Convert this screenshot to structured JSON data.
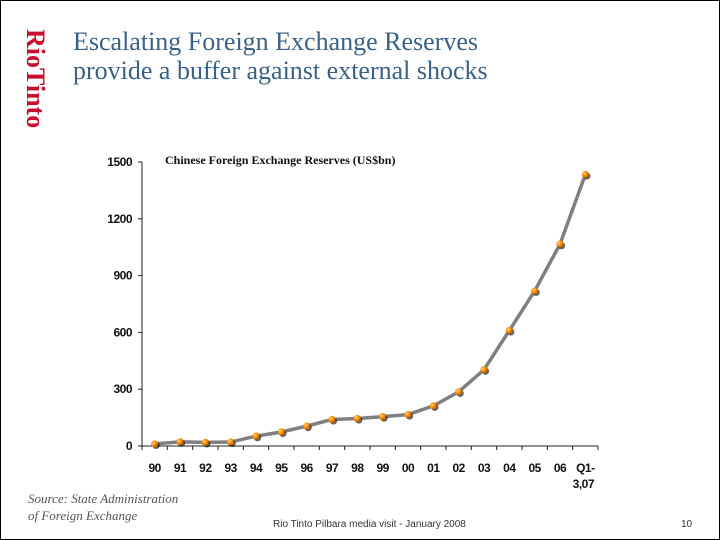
{
  "logo_text": "RioTinto",
  "title": {
    "line1": "Escalating Foreign Exchange Reserves",
    "line2": "provide a buffer against external shocks"
  },
  "source": {
    "line1": "Source: State Administration",
    "line2": "of Foreign Exchange"
  },
  "footer": "Rio Tinto Pilbara media visit - January 2008",
  "page_number": "10",
  "colors": {
    "title": "#3a6186",
    "logo": "#c8102e",
    "line": "#7f7f7f",
    "marker": "#ff8c00"
  },
  "chart_data": {
    "type": "line",
    "title": "Chinese Foreign Exchange Reserves (US$bn)",
    "xlabel": "",
    "ylabel": "",
    "ylim": [
      0,
      1500
    ],
    "yticks": [
      0,
      300,
      600,
      900,
      1200,
      1500
    ],
    "grid": false,
    "categories": [
      "90",
      "91",
      "92",
      "93",
      "94",
      "95",
      "96",
      "97",
      "98",
      "99",
      "00",
      "01",
      "02",
      "03",
      "04",
      "05",
      "06",
      "Q1-3,07"
    ],
    "series": [
      {
        "values": [
          11,
          22,
          19,
          21,
          52,
          74,
          105,
          140,
          145,
          155,
          166,
          212,
          286,
          403,
          610,
          819,
          1066,
          1434
        ]
      }
    ]
  }
}
